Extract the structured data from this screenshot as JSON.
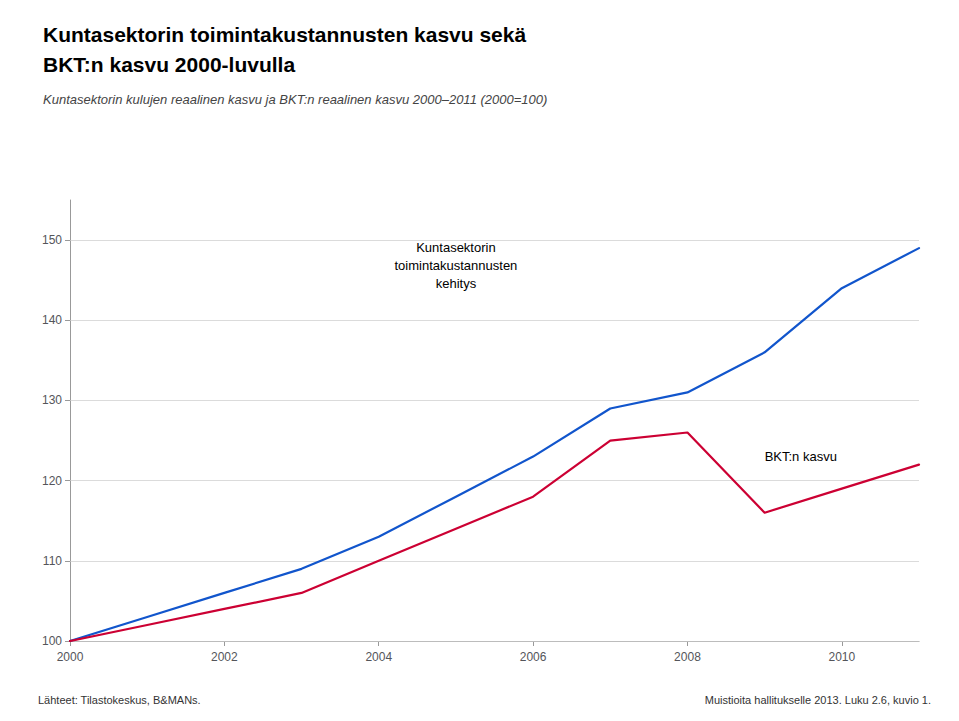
{
  "chart_data": {
    "type": "line",
    "title": "Kuntasektorin toimintakustannusten kasvu sekä\nBKT:n kasvu 2000-luvulla",
    "subtitle": "Kuntasektorin kulujen reaalinen kasvu ja BKT:n reaalinen kasvu 2000–2011 (2000=100)",
    "x": [
      2000,
      2001,
      2002,
      2003,
      2004,
      2005,
      2006,
      2007,
      2008,
      2009,
      2010,
      2011
    ],
    "series": [
      {
        "name": "Kuntasektorin\ntoimintakustannusten\nkehitys",
        "color": "#1155cc",
        "values": [
          100,
          103,
          106,
          109,
          113,
          118,
          123,
          129,
          131,
          136,
          144,
          149
        ]
      },
      {
        "name": "BKT:n kasvu",
        "color": "#cc0033",
        "values": [
          100,
          102,
          104,
          106,
          110,
          114,
          118,
          125,
          126,
          116,
          119,
          122
        ]
      }
    ],
    "xlim": [
      2000,
      2011
    ],
    "xticks": [
      2000,
      2002,
      2004,
      2006,
      2008,
      2010
    ],
    "ylim": [
      100,
      155
    ],
    "yticks": [
      100,
      110,
      120,
      130,
      140,
      150
    ],
    "grid": true,
    "footer": [
      "Lähteet: Tilastokeskus, B&MANs.",
      "Muistioita hallitukselle 2013. Luku 2.6, kuvio 1."
    ]
  }
}
